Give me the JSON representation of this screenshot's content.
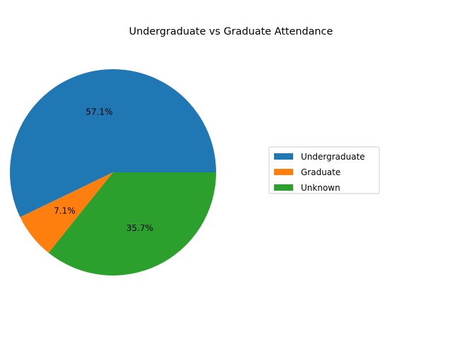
{
  "chart_data": {
    "type": "pie",
    "title": "Undergraduate vs Graduate Attendance",
    "slices": [
      {
        "label": "Undergraduate",
        "value": 57.1,
        "pct_label": "57.1%",
        "color": "#1f77b4"
      },
      {
        "label": "Graduate",
        "value": 7.1,
        "pct_label": "7.1%",
        "color": "#ff7f0e"
      },
      {
        "label": "Unknown",
        "value": 35.7,
        "pct_label": "35.7%",
        "color": "#2ca02c"
      }
    ],
    "start_angle_deg": 0,
    "direction": "counterclockwise",
    "legend": {
      "placement": "center-right",
      "entries": [
        "Undergraduate",
        "Graduate",
        "Unknown"
      ]
    }
  }
}
